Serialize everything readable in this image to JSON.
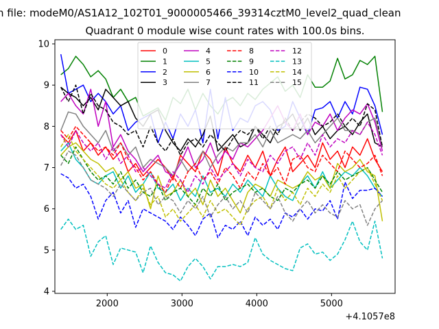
{
  "figure": {
    "suptitle": "n file: modeM0/AS1A12_102T01_9000005466_39314cztM0_level2_quad_clean",
    "offset_text": "+4.1057e8"
  },
  "chart_data": {
    "type": "line",
    "title": "Quadrant 0 module wise count rates with 100.0s bins.",
    "xlabel": "",
    "ylabel": "",
    "xlim": [
      1300,
      5850
    ],
    "ylim": [
      3.95,
      10.1
    ],
    "x_offset": 410570000,
    "xticks": [
      2000,
      3000,
      4000,
      5000
    ],
    "yticks": [
      4,
      5,
      6,
      7,
      8,
      9,
      10
    ],
    "grid": false,
    "legend": {
      "placement": "upper-center",
      "ncol": 4
    },
    "x": [
      1380,
      1480,
      1580,
      1680,
      1780,
      1880,
      1980,
      2080,
      2180,
      2280,
      2380,
      2480,
      2580,
      2680,
      2780,
      2880,
      2980,
      3080,
      3180,
      3280,
      3380,
      3480,
      3580,
      3680,
      3780,
      3880,
      3980,
      4080,
      4180,
      4280,
      4380,
      4480,
      4580,
      4680,
      4780,
      4880,
      4980,
      5080,
      5180,
      5280,
      5380,
      5480,
      5580,
      5680
    ],
    "series": [
      {
        "name": "0",
        "color": "#ff0000",
        "dash": "solid",
        "values": [
          7.8,
          7.6,
          7.9,
          7.4,
          7.6,
          7.3,
          7.5,
          7.2,
          7.4,
          6.9,
          7.1,
          6.8,
          7.0,
          7.2,
          7.0,
          6.7,
          7.3,
          7.1,
          6.9,
          7.4,
          7.2,
          6.8,
          7.5,
          7.1,
          6.9,
          7.3,
          7.0,
          7.4,
          6.8,
          7.2,
          7.5,
          6.9,
          7.1,
          7.3,
          7.0,
          7.6,
          7.2,
          7.4,
          7.0,
          7.5,
          7.3,
          7.7,
          7.2,
          6.9
        ]
      },
      {
        "name": "1",
        "color": "#008000",
        "dash": "solid",
        "values": [
          9.25,
          9.4,
          9.7,
          9.5,
          9.2,
          9.35,
          9.15,
          8.7,
          8.9,
          8.6,
          8.7,
          8.25,
          8.35,
          8.45,
          8.15,
          8.7,
          8.55,
          8.9,
          8.4,
          8.8,
          8.5,
          8.3,
          8.6,
          8.7,
          8.5,
          8.8,
          8.65,
          8.9,
          9.05,
          9.2,
          8.85,
          9.0,
          8.7,
          9.25,
          8.95,
          8.95,
          9.1,
          9.65,
          9.15,
          9.25,
          9.6,
          9.5,
          9.7,
          8.35
        ]
      },
      {
        "name": "2",
        "color": "#0000ff",
        "dash": "solid",
        "values": [
          9.75,
          8.8,
          8.9,
          9.0,
          8.6,
          8.8,
          8.6,
          8.3,
          8.5,
          7.9,
          8.1,
          8.2,
          8.3,
          7.6,
          8.1,
          7.7,
          8.3,
          8.0,
          8.4,
          7.6,
          8.9,
          7.7,
          8.7,
          7.9,
          8.2,
          8.1,
          8.5,
          8.6,
          8.4,
          7.9,
          8.0,
          8.6,
          8.2,
          7.8,
          8.4,
          8.45,
          8.6,
          8.2,
          8.6,
          8.3,
          8.95,
          8.9,
          8.5,
          7.8
        ]
      },
      {
        "name": "3",
        "color": "#000000",
        "dash": "solid",
        "values": [
          8.95,
          8.8,
          8.7,
          8.5,
          8.7,
          8.4,
          8.9,
          8.7,
          8.5,
          8.6,
          8.2,
          8.0,
          8.3,
          8.4,
          7.9,
          7.6,
          7.4,
          7.7,
          7.5,
          7.8,
          8.25,
          7.4,
          7.6,
          7.8,
          7.5,
          7.6,
          8.0,
          7.8,
          7.6,
          8.0,
          8.1,
          8.3,
          7.9,
          8.2,
          7.8,
          8.0,
          7.7,
          7.9,
          8.0,
          7.8,
          8.1,
          8.3,
          7.6,
          7.5
        ]
      },
      {
        "name": "4",
        "color": "#bf00bf",
        "dash": "solid",
        "values": [
          8.6,
          8.8,
          8.5,
          8.3,
          8.9,
          8.0,
          8.6,
          7.5,
          7.8,
          7.4,
          7.2,
          6.9,
          7.1,
          7.3,
          6.9,
          6.8,
          7.1,
          7.5,
          7.0,
          7.2,
          7.6,
          7.1,
          7.4,
          7.2,
          7.6,
          7.5,
          7.7,
          7.9,
          8.2,
          8.5,
          8.1,
          7.9,
          8.3,
          7.8,
          8.1,
          8.0,
          8.3,
          7.9,
          8.2,
          8.4,
          8.3,
          8.55,
          8.1,
          7.4
        ]
      },
      {
        "name": "5",
        "color": "#00bfbf",
        "dash": "solid",
        "values": [
          7.4,
          7.6,
          7.2,
          7.0,
          6.7,
          6.6,
          6.8,
          6.9,
          6.5,
          6.8,
          6.4,
          6.6,
          6.9,
          6.5,
          6.4,
          6.6,
          6.2,
          6.5,
          6.3,
          6.8,
          6.4,
          6.5,
          6.3,
          6.6,
          6.4,
          6.7,
          6.5,
          6.3,
          6.8,
          6.5,
          6.3,
          6.2,
          6.6,
          6.8,
          6.5,
          6.9,
          6.5,
          6.7,
          6.9,
          6.8,
          7.0,
          6.8,
          6.5,
          6.3
        ]
      },
      {
        "name": "6",
        "color": "#bfbf00",
        "dash": "solid",
        "values": [
          7.3,
          7.5,
          7.6,
          7.4,
          7.2,
          7.1,
          6.9,
          7.0,
          6.7,
          6.9,
          6.5,
          6.6,
          6.0,
          6.8,
          6.3,
          6.4,
          6.7,
          6.3,
          6.5,
          6.1,
          6.7,
          6.3,
          6.5,
          6.2,
          5.9,
          6.4,
          6.6,
          6.5,
          6.3,
          6.7,
          6.6,
          6.5,
          6.6,
          6.9,
          6.7,
          6.8,
          6.5,
          7.1,
          6.9,
          7.0,
          7.2,
          6.9,
          6.8,
          5.7
        ]
      },
      {
        "name": "7",
        "color": "#808080",
        "dash": "solid",
        "values": [
          7.9,
          8.35,
          8.3,
          8.0,
          7.8,
          7.6,
          7.9,
          7.4,
          7.6,
          7.3,
          7.5,
          7.0,
          7.2,
          7.1,
          7.0,
          6.8,
          7.2,
          6.9,
          7.1,
          7.4,
          7.0,
          7.3,
          7.5,
          7.4,
          7.6,
          7.6,
          7.8,
          7.5,
          7.9,
          7.6,
          7.7,
          7.8,
          7.7,
          7.9,
          7.6,
          7.8,
          8.0,
          8.2,
          7.9,
          7.9,
          7.8,
          8.1,
          8.2,
          7.5
        ]
      },
      {
        "name": "8",
        "color": "#ff0000",
        "dash": "dashed",
        "values": [
          7.9,
          7.7,
          8.0,
          7.8,
          7.6,
          7.4,
          7.5,
          7.3,
          7.6,
          7.2,
          7.0,
          6.7,
          6.9,
          6.6,
          6.4,
          6.8,
          6.5,
          6.9,
          7.1,
          6.7,
          6.9,
          6.6,
          7.0,
          6.8,
          6.5,
          6.9,
          6.7,
          7.1,
          6.8,
          7.0,
          6.6,
          7.2,
          7.3,
          7.0,
          6.9,
          7.3,
          7.1,
          6.9,
          7.4,
          7.2,
          7.0,
          7.1,
          7.3,
          6.8
        ]
      },
      {
        "name": "9",
        "color": "#008000",
        "dash": "dashed",
        "values": [
          7.3,
          7.1,
          7.5,
          7.2,
          6.9,
          6.7,
          6.8,
          6.6,
          6.9,
          6.5,
          6.7,
          6.4,
          6.3,
          6.6,
          6.2,
          6.4,
          6.5,
          6.3,
          6.1,
          6.5,
          6.3,
          6.6,
          6.2,
          6.4,
          6.5,
          6.6,
          6.4,
          6.5,
          6.3,
          6.2,
          6.5,
          6.4,
          6.6,
          6.7,
          6.5,
          6.8,
          6.6,
          6.9,
          6.7,
          6.8,
          6.9,
          7.0,
          6.7,
          6.4
        ]
      },
      {
        "name": "10",
        "color": "#0000ff",
        "dash": "dashed",
        "values": [
          6.85,
          6.75,
          6.5,
          6.6,
          6.3,
          5.75,
          6.2,
          6.4,
          5.9,
          6.2,
          5.55,
          6.0,
          5.9,
          5.8,
          5.7,
          5.5,
          5.8,
          5.6,
          5.35,
          5.75,
          5.9,
          5.3,
          5.6,
          5.5,
          5.7,
          5.35,
          5.8,
          5.6,
          5.75,
          5.5,
          5.9,
          5.8,
          6.0,
          5.75,
          6.0,
          5.95,
          6.2,
          5.75,
          6.65,
          6.25,
          6.45,
          6.45,
          6.5,
          6.3
        ]
      },
      {
        "name": "11",
        "color": "#000000",
        "dash": "dashed",
        "values": [
          8.95,
          8.6,
          9.0,
          8.3,
          8.8,
          8.5,
          8.4,
          8.1,
          8.0,
          7.8,
          7.9,
          7.5,
          8.0,
          7.6,
          7.4,
          7.7,
          7.3,
          7.6,
          7.7,
          7.5,
          7.8,
          7.6,
          7.4,
          7.7,
          7.9,
          7.8,
          8.0,
          7.7,
          8.0,
          7.8,
          8.2,
          7.9,
          8.1,
          8.3,
          8.2,
          8.0,
          8.1,
          8.3,
          8.0,
          8.2,
          8.0,
          8.55,
          8.4,
          7.5
        ]
      },
      {
        "name": "12",
        "color": "#bf00bf",
        "dash": "dashed",
        "values": [
          7.8,
          7.5,
          7.9,
          7.6,
          7.4,
          7.6,
          7.2,
          7.5,
          7.1,
          7.3,
          6.9,
          7.0,
          6.8,
          6.6,
          6.5,
          6.9,
          6.7,
          6.4,
          6.8,
          6.6,
          7.0,
          6.7,
          6.9,
          7.1,
          6.8,
          7.2,
          7.0,
          6.9,
          7.3,
          7.1,
          7.4,
          7.5,
          7.2,
          7.6,
          7.3,
          7.8,
          7.5,
          7.7,
          7.6,
          7.9,
          7.8,
          8.1,
          7.8,
          7.3
        ]
      },
      {
        "name": "13",
        "color": "#00bfbf",
        "dash": "dashed",
        "values": [
          5.5,
          5.75,
          5.5,
          5.6,
          4.85,
          5.2,
          5.35,
          4.65,
          5.05,
          5.0,
          4.95,
          4.45,
          5.1,
          4.7,
          4.45,
          4.4,
          4.25,
          4.6,
          4.8,
          4.6,
          4.3,
          4.6,
          4.6,
          4.65,
          4.6,
          4.7,
          5.3,
          4.9,
          4.75,
          4.65,
          4.55,
          4.5,
          5.05,
          5.15,
          4.9,
          4.95,
          4.75,
          4.9,
          5.25,
          5.7,
          5.2,
          5.0,
          5.7,
          4.8
        ]
      },
      {
        "name": "14",
        "color": "#bfbf00",
        "dash": "dashed",
        "values": [
          7.5,
          7.8,
          7.4,
          7.2,
          7.0,
          6.8,
          6.6,
          6.5,
          6.7,
          6.4,
          6.2,
          6.5,
          6.1,
          6.3,
          5.8,
          6.0,
          5.7,
          5.9,
          6.1,
          5.8,
          6.2,
          5.9,
          6.0,
          5.8,
          5.6,
          6.0,
          6.2,
          6.3,
          6.0,
          6.5,
          6.2,
          6.4,
          6.1,
          6.5,
          6.3,
          6.6,
          6.4,
          6.8,
          6.5,
          6.7,
          6.9,
          7.0,
          6.6,
          6.2
        ]
      },
      {
        "name": "15",
        "color": "#808080",
        "dash": "dashed",
        "values": [
          7.05,
          7.4,
          7.3,
          7.0,
          6.7,
          6.6,
          6.5,
          6.3,
          6.6,
          6.4,
          6.2,
          6.4,
          6.5,
          6.1,
          6.3,
          6.2,
          5.9,
          6.2,
          6.0,
          6.3,
          5.8,
          6.1,
          6.3,
          6.0,
          6.2,
          5.9,
          6.4,
          6.2,
          6.0,
          6.3,
          5.9,
          5.7,
          6.0,
          6.2,
          5.9,
          6.1,
          5.9,
          5.8,
          6.2,
          6.0,
          6.1,
          5.6,
          6.0,
          6.2
        ]
      }
    ]
  }
}
